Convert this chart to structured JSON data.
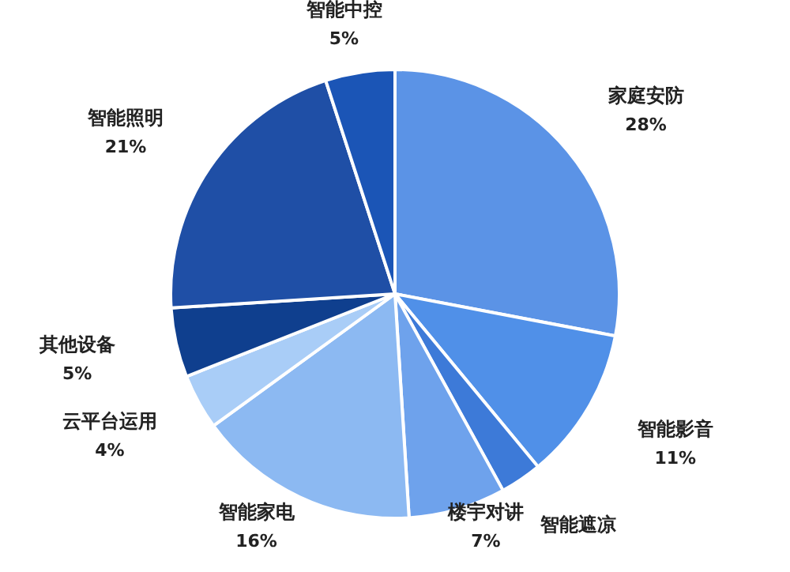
{
  "chart_data": {
    "type": "pie",
    "categories": [
      "家庭安防",
      "智能影音",
      "智能遮凉",
      "楼宇对讲",
      "智能家电",
      "云平台运用",
      "其他设备",
      "智能照明",
      "智能中控"
    ],
    "values": [
      28,
      11,
      3,
      7,
      16,
      4,
      5,
      21,
      5
    ],
    "value_labels": [
      "28%",
      "11%",
      null,
      "7%",
      "16%",
      "4%",
      "5%",
      "21%",
      "5%"
    ],
    "colors": [
      "#5b93e6",
      "#5090e8",
      "#3d7ad8",
      "#6ea2ec",
      "#8cb9f2",
      "#a9cdf7",
      "#0f3f8e",
      "#1f4fa6",
      "#1b55b6"
    ]
  }
}
